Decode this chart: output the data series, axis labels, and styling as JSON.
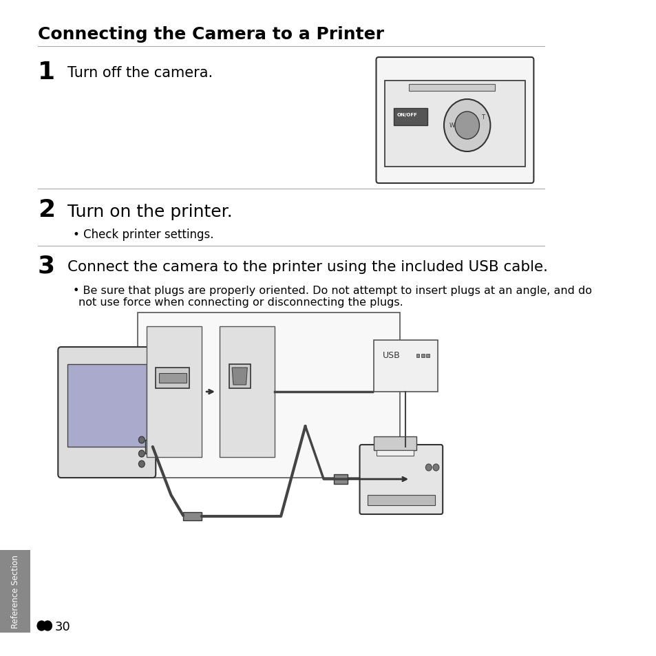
{
  "title": "Connecting the Camera to a Printer",
  "step1_number": "1",
  "step1_text": "Turn off the camera.",
  "step2_number": "2",
  "step2_text": "Turn on the printer.",
  "step2_bullet": "Check printer settings.",
  "step3_number": "3",
  "step3_text": "Connect the camera to the printer using the included USB cable.",
  "step3_bullet": "Be sure that plugs are properly oriented. Do not attempt to insert plugs at an angle, and do\nnot use force when connecting or disconnecting the plugs.",
  "footer_text": "E┰30",
  "sidebar_text": "Reference Section",
  "bg_color": "#ffffff",
  "text_color": "#000000",
  "line_color": "#aaaaaa",
  "sidebar_color": "#888888"
}
